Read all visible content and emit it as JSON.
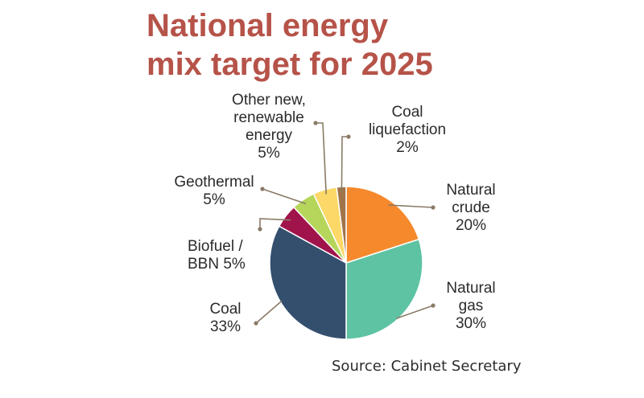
{
  "chart_data": {
    "type": "pie",
    "title_lines": [
      "National energy",
      "mix target for 2025"
    ],
    "source": "Source: Cabinet Secretary",
    "slices": [
      {
        "label_lines": [
          "Natural",
          "crude"
        ],
        "value_text": "20%",
        "value": 20,
        "color": "#f5892c"
      },
      {
        "label_lines": [
          "Natural",
          "gas"
        ],
        "value_text": "30%",
        "value": 30,
        "color": "#5dc3a3"
      },
      {
        "label_lines": [
          "Coal"
        ],
        "value_text": "33%",
        "value": 33,
        "color": "#344f6e"
      },
      {
        "label_lines": [
          "Biofuel /",
          "BBN 5%"
        ],
        "value_text": "",
        "value": 5,
        "color": "#a0144b"
      },
      {
        "label_lines": [
          "Geothermal"
        ],
        "value_text": "5%",
        "value": 5,
        "color": "#b5d65a"
      },
      {
        "label_lines": [
          "Other new,",
          "renewable",
          "energy"
        ],
        "value_text": "5%",
        "value": 5,
        "color": "#fbd867"
      },
      {
        "label_lines": [
          "Coal",
          "liquefaction"
        ],
        "value_text": "2%",
        "value": 2,
        "color": "#a07449"
      }
    ]
  }
}
